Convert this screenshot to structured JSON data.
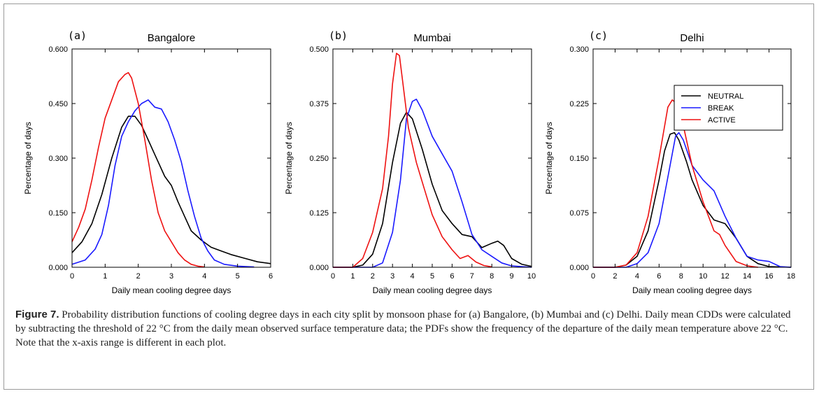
{
  "caption": {
    "label": "Figure 7.",
    "text": "Probability distribution functions of cooling degree days in each city split by monsoon phase for (a) Bangalore, (b) Mumbai and (c) Delhi. Daily mean CDDs were calculated by subtracting the threshold of 22 °C from the daily mean observed surface temperature data; the PDFs show the frequency of the departure of the daily mean temperature above 22 °C. Note that the x-axis range is different in each plot."
  },
  "chart_data": [
    {
      "type": "line",
      "panel_label": "(a)",
      "title": "Bangalore",
      "xlabel": "Daily mean cooling degree days",
      "ylabel": "Percentage of days",
      "xlim": [
        0,
        6
      ],
      "ylim": [
        0,
        0.6
      ],
      "xticks": [
        "0",
        "1",
        "2",
        "3",
        "4",
        "5",
        "6"
      ],
      "yticks": [
        "0.000",
        "0.150",
        "0.300",
        "0.450",
        "0.600"
      ],
      "legend": null,
      "series": [
        {
          "name": "NEUTRAL",
          "color": "#000000",
          "points": [
            [
              0,
              0.04
            ],
            [
              0.3,
              0.07
            ],
            [
              0.6,
              0.12
            ],
            [
              0.9,
              0.2
            ],
            [
              1.2,
              0.3
            ],
            [
              1.5,
              0.385
            ],
            [
              1.7,
              0.415
            ],
            [
              1.9,
              0.415
            ],
            [
              2.1,
              0.39
            ],
            [
              2.3,
              0.35
            ],
            [
              2.5,
              0.31
            ],
            [
              2.8,
              0.25
            ],
            [
              3.0,
              0.225
            ],
            [
              3.2,
              0.18
            ],
            [
              3.4,
              0.14
            ],
            [
              3.6,
              0.1
            ],
            [
              3.9,
              0.075
            ],
            [
              4.2,
              0.055
            ],
            [
              4.5,
              0.045
            ],
            [
              4.8,
              0.035
            ],
            [
              5.2,
              0.025
            ],
            [
              5.6,
              0.015
            ],
            [
              6.0,
              0.01
            ]
          ]
        },
        {
          "name": "BREAK",
          "color": "#1a1aff",
          "points": [
            [
              0,
              0.008
            ],
            [
              0.4,
              0.02
            ],
            [
              0.7,
              0.05
            ],
            [
              0.9,
              0.09
            ],
            [
              1.1,
              0.17
            ],
            [
              1.3,
              0.28
            ],
            [
              1.5,
              0.36
            ],
            [
              1.7,
              0.4
            ],
            [
              1.9,
              0.43
            ],
            [
              2.1,
              0.45
            ],
            [
              2.3,
              0.46
            ],
            [
              2.5,
              0.44
            ],
            [
              2.7,
              0.435
            ],
            [
              2.9,
              0.4
            ],
            [
              3.1,
              0.35
            ],
            [
              3.3,
              0.29
            ],
            [
              3.5,
              0.21
            ],
            [
              3.7,
              0.14
            ],
            [
              3.9,
              0.08
            ],
            [
              4.1,
              0.045
            ],
            [
              4.3,
              0.02
            ],
            [
              4.6,
              0.008
            ],
            [
              5.0,
              0.003
            ],
            [
              5.5,
              0.001
            ]
          ]
        },
        {
          "name": "ACTIVE",
          "color": "#ee1111",
          "points": [
            [
              0,
              0.07
            ],
            [
              0.2,
              0.11
            ],
            [
              0.4,
              0.16
            ],
            [
              0.6,
              0.24
            ],
            [
              0.8,
              0.33
            ],
            [
              1.0,
              0.41
            ],
            [
              1.2,
              0.46
            ],
            [
              1.4,
              0.51
            ],
            [
              1.6,
              0.53
            ],
            [
              1.7,
              0.535
            ],
            [
              1.8,
              0.52
            ],
            [
              2.0,
              0.45
            ],
            [
              2.2,
              0.35
            ],
            [
              2.4,
              0.24
            ],
            [
              2.6,
              0.15
            ],
            [
              2.8,
              0.1
            ],
            [
              3.0,
              0.07
            ],
            [
              3.2,
              0.04
            ],
            [
              3.4,
              0.02
            ],
            [
              3.6,
              0.008
            ],
            [
              3.8,
              0.003
            ],
            [
              4.0,
              0.001
            ]
          ]
        }
      ]
    },
    {
      "type": "line",
      "panel_label": "(b)",
      "title": "Mumbai",
      "xlabel": "Daily mean cooling degree days",
      "ylabel": "Percentage of days",
      "xlim": [
        0,
        10
      ],
      "ylim": [
        0,
        0.5
      ],
      "xticks": [
        "0",
        "1",
        "2",
        "3",
        "4",
        "5",
        "6",
        "7",
        "8",
        "9",
        "10"
      ],
      "yticks": [
        "0.000",
        "0.125",
        "0.250",
        "0.375",
        "0.500"
      ],
      "legend": null,
      "series": [
        {
          "name": "NEUTRAL",
          "color": "#000000",
          "points": [
            [
              0,
              0
            ],
            [
              1.0,
              0
            ],
            [
              1.5,
              0.005
            ],
            [
              2.0,
              0.03
            ],
            [
              2.5,
              0.1
            ],
            [
              3.0,
              0.24
            ],
            [
              3.4,
              0.33
            ],
            [
              3.7,
              0.355
            ],
            [
              4.0,
              0.34
            ],
            [
              4.5,
              0.27
            ],
            [
              5.0,
              0.19
            ],
            [
              5.5,
              0.13
            ],
            [
              6.0,
              0.1
            ],
            [
              6.5,
              0.075
            ],
            [
              7.0,
              0.07
            ],
            [
              7.5,
              0.045
            ],
            [
              8.0,
              0.055
            ],
            [
              8.3,
              0.06
            ],
            [
              8.6,
              0.05
            ],
            [
              9.0,
              0.02
            ],
            [
              9.5,
              0.007
            ],
            [
              10,
              0.002
            ]
          ]
        },
        {
          "name": "BREAK",
          "color": "#1a1aff",
          "points": [
            [
              0,
              0
            ],
            [
              2.0,
              0
            ],
            [
              2.5,
              0.01
            ],
            [
              3.0,
              0.08
            ],
            [
              3.4,
              0.2
            ],
            [
              3.7,
              0.34
            ],
            [
              4.0,
              0.38
            ],
            [
              4.2,
              0.385
            ],
            [
              4.5,
              0.36
            ],
            [
              5.0,
              0.3
            ],
            [
              5.5,
              0.26
            ],
            [
              6.0,
              0.22
            ],
            [
              6.5,
              0.15
            ],
            [
              7.0,
              0.075
            ],
            [
              7.5,
              0.04
            ],
            [
              8.0,
              0.025
            ],
            [
              8.5,
              0.01
            ],
            [
              9.0,
              0.003
            ],
            [
              10,
              0
            ]
          ]
        },
        {
          "name": "ACTIVE",
          "color": "#ee1111",
          "points": [
            [
              0,
              0
            ],
            [
              1.0,
              0
            ],
            [
              1.5,
              0.02
            ],
            [
              2.0,
              0.08
            ],
            [
              2.5,
              0.18
            ],
            [
              2.8,
              0.3
            ],
            [
              3.0,
              0.42
            ],
            [
              3.2,
              0.49
            ],
            [
              3.35,
              0.485
            ],
            [
              3.5,
              0.43
            ],
            [
              3.8,
              0.32
            ],
            [
              4.2,
              0.24
            ],
            [
              4.6,
              0.18
            ],
            [
              5.0,
              0.12
            ],
            [
              5.5,
              0.07
            ],
            [
              6.0,
              0.04
            ],
            [
              6.4,
              0.02
            ],
            [
              6.8,
              0.027
            ],
            [
              7.2,
              0.012
            ],
            [
              7.6,
              0.004
            ],
            [
              8.0,
              0.001
            ]
          ]
        }
      ]
    },
    {
      "type": "line",
      "panel_label": "(c)",
      "title": "Delhi",
      "xlabel": "Daily mean cooling degree days",
      "ylabel": "Percentage of days",
      "xlim": [
        0,
        18
      ],
      "ylim": [
        0,
        0.3
      ],
      "xticks": [
        "0",
        "2",
        "4",
        "6",
        "8",
        "10",
        "12",
        "14",
        "16",
        "18"
      ],
      "yticks": [
        "0.000",
        "0.075",
        "0.150",
        "0.225",
        "0.300"
      ],
      "legend": {
        "placement": "top-right",
        "entries": [
          "NEUTRAL",
          "BREAK",
          "ACTIVE"
        ]
      },
      "series": [
        {
          "name": "NEUTRAL",
          "color": "#000000",
          "points": [
            [
              0,
              0
            ],
            [
              2,
              0
            ],
            [
              3,
              0.003
            ],
            [
              4,
              0.015
            ],
            [
              5,
              0.05
            ],
            [
              6,
              0.12
            ],
            [
              6.5,
              0.16
            ],
            [
              7,
              0.183
            ],
            [
              7.4,
              0.185
            ],
            [
              7.8,
              0.175
            ],
            [
              8.5,
              0.145
            ],
            [
              9,
              0.12
            ],
            [
              10,
              0.085
            ],
            [
              11,
              0.065
            ],
            [
              12,
              0.06
            ],
            [
              13,
              0.04
            ],
            [
              14,
              0.015
            ],
            [
              15,
              0.005
            ],
            [
              16,
              0.001
            ],
            [
              18,
              0
            ]
          ]
        },
        {
          "name": "BREAK",
          "color": "#1a1aff",
          "points": [
            [
              0,
              0
            ],
            [
              3,
              0
            ],
            [
              4,
              0.005
            ],
            [
              5,
              0.02
            ],
            [
              6,
              0.06
            ],
            [
              7,
              0.14
            ],
            [
              7.5,
              0.18
            ],
            [
              7.8,
              0.185
            ],
            [
              8.2,
              0.175
            ],
            [
              9,
              0.14
            ],
            [
              10,
              0.12
            ],
            [
              11,
              0.105
            ],
            [
              12,
              0.07
            ],
            [
              13,
              0.04
            ],
            [
              14,
              0.015
            ],
            [
              15,
              0.01
            ],
            [
              16,
              0.008
            ],
            [
              17,
              0.001
            ],
            [
              18,
              0
            ]
          ]
        },
        {
          "name": "ACTIVE",
          "color": "#ee1111",
          "points": [
            [
              0,
              0
            ],
            [
              2,
              0
            ],
            [
              3,
              0.003
            ],
            [
              4,
              0.02
            ],
            [
              5,
              0.07
            ],
            [
              6,
              0.15
            ],
            [
              6.8,
              0.22
            ],
            [
              7.2,
              0.23
            ],
            [
              7.6,
              0.225
            ],
            [
              8.2,
              0.195
            ],
            [
              9,
              0.14
            ],
            [
              10,
              0.09
            ],
            [
              11,
              0.05
            ],
            [
              11.5,
              0.045
            ],
            [
              12,
              0.03
            ],
            [
              13,
              0.008
            ],
            [
              14,
              0.002
            ],
            [
              15,
              0
            ]
          ]
        }
      ]
    }
  ]
}
